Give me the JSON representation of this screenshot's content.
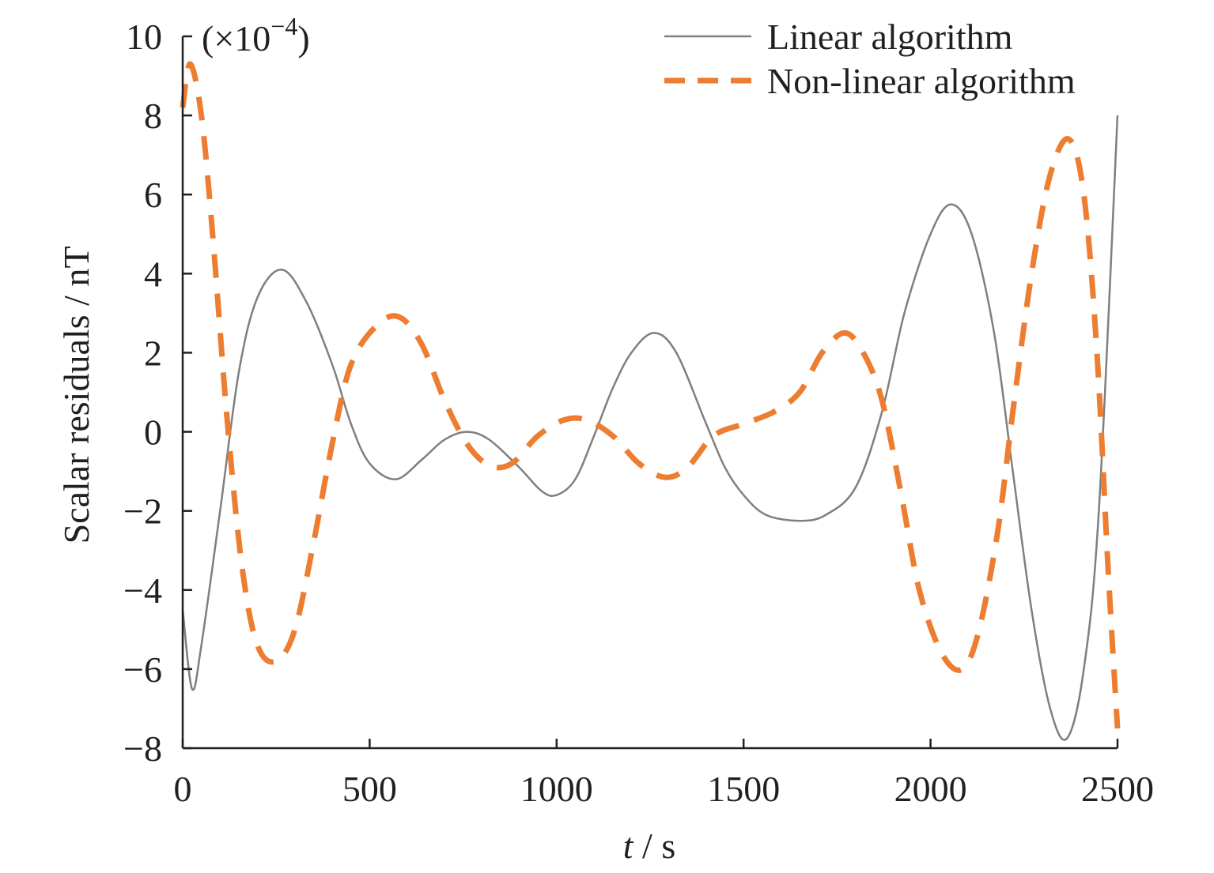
{
  "chart_data": {
    "type": "line",
    "xlabel_var": "t",
    "xlabel_unit": " / s",
    "ylabel": "Scalar residuals / nT",
    "y_multiplier": "(×10",
    "y_multiplier_exp": "−4",
    "y_multiplier_close": ")",
    "xlim": [
      0,
      2500
    ],
    "ylim": [
      -8,
      10
    ],
    "xticks": [
      0,
      500,
      1000,
      1500,
      2000,
      2500
    ],
    "xtick_labels": [
      "0",
      "500",
      "1000",
      "1500",
      "2000",
      "2500"
    ],
    "yticks": [
      -8,
      -6,
      -4,
      -2,
      0,
      2,
      4,
      6,
      8,
      10
    ],
    "ytick_labels": [
      "−8",
      "−6",
      "−4",
      "−2",
      "0",
      "2",
      "4",
      "6",
      "8",
      "10"
    ],
    "grid": false,
    "legend_position": "top-right",
    "series": [
      {
        "name": "Linear algorithm",
        "color": "#7f7f7f",
        "dash": "solid",
        "points": [
          [
            0,
            -4.5
          ],
          [
            25,
            -6.5
          ],
          [
            50,
            -5.4
          ],
          [
            100,
            -2.0
          ],
          [
            150,
            1.5
          ],
          [
            200,
            3.4
          ],
          [
            265,
            4.1
          ],
          [
            330,
            3.3
          ],
          [
            400,
            1.7
          ],
          [
            450,
            0.2
          ],
          [
            500,
            -0.8
          ],
          [
            570,
            -1.2
          ],
          [
            640,
            -0.7
          ],
          [
            700,
            -0.2
          ],
          [
            760,
            0.0
          ],
          [
            820,
            -0.2
          ],
          [
            900,
            -0.9
          ],
          [
            960,
            -1.5
          ],
          [
            1000,
            -1.6
          ],
          [
            1050,
            -1.2
          ],
          [
            1100,
            -0.1
          ],
          [
            1150,
            1.1
          ],
          [
            1200,
            2.0
          ],
          [
            1260,
            2.5
          ],
          [
            1320,
            2.0
          ],
          [
            1400,
            0.2
          ],
          [
            1450,
            -0.9
          ],
          [
            1500,
            -1.6
          ],
          [
            1560,
            -2.1
          ],
          [
            1650,
            -2.25
          ],
          [
            1720,
            -2.1
          ],
          [
            1800,
            -1.4
          ],
          [
            1870,
            0.5
          ],
          [
            1930,
            3.0
          ],
          [
            2000,
            5.0
          ],
          [
            2055,
            5.75
          ],
          [
            2110,
            5.0
          ],
          [
            2170,
            2.5
          ],
          [
            2220,
            -1.0
          ],
          [
            2270,
            -4.5
          ],
          [
            2320,
            -7.0
          ],
          [
            2365,
            -7.75
          ],
          [
            2410,
            -6.0
          ],
          [
            2450,
            -2.0
          ],
          [
            2500,
            8.0
          ]
        ]
      },
      {
        "name": "Non-linear algorithm",
        "color": "#ed7d31",
        "dash": "dashed",
        "points": [
          [
            0,
            8.2
          ],
          [
            20,
            9.3
          ],
          [
            50,
            8.0
          ],
          [
            80,
            5.0
          ],
          [
            120,
            0.2
          ],
          [
            160,
            -3.5
          ],
          [
            200,
            -5.4
          ],
          [
            250,
            -5.8
          ],
          [
            300,
            -5.0
          ],
          [
            350,
            -2.8
          ],
          [
            400,
            -0.3
          ],
          [
            450,
            1.7
          ],
          [
            520,
            2.7
          ],
          [
            580,
            2.9
          ],
          [
            640,
            2.2
          ],
          [
            700,
            0.8
          ],
          [
            760,
            -0.3
          ],
          [
            820,
            -0.85
          ],
          [
            880,
            -0.8
          ],
          [
            950,
            -0.1
          ],
          [
            1020,
            0.3
          ],
          [
            1080,
            0.3
          ],
          [
            1150,
            -0.1
          ],
          [
            1220,
            -0.8
          ],
          [
            1290,
            -1.15
          ],
          [
            1350,
            -0.9
          ],
          [
            1420,
            -0.1
          ],
          [
            1500,
            0.2
          ],
          [
            1580,
            0.5
          ],
          [
            1650,
            1.0
          ],
          [
            1710,
            2.0
          ],
          [
            1770,
            2.5
          ],
          [
            1820,
            2.0
          ],
          [
            1870,
            0.8
          ],
          [
            1920,
            -1.5
          ],
          [
            1970,
            -4.0
          ],
          [
            2030,
            -5.6
          ],
          [
            2085,
            -6.0
          ],
          [
            2130,
            -5.0
          ],
          [
            2180,
            -2.5
          ],
          [
            2220,
            0.5
          ],
          [
            2270,
            4.0
          ],
          [
            2320,
            6.5
          ],
          [
            2370,
            7.4
          ],
          [
            2410,
            6.0
          ],
          [
            2445,
            2.0
          ],
          [
            2475,
            -3.5
          ],
          [
            2500,
            -7.5
          ]
        ]
      }
    ]
  }
}
